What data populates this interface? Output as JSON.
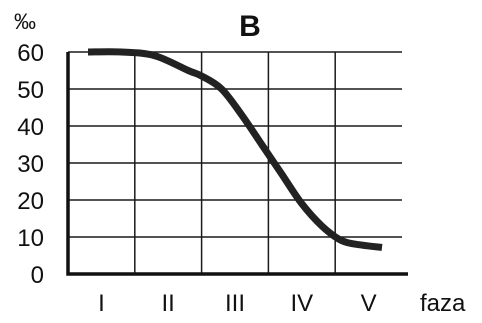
{
  "chart_data": {
    "type": "line",
    "title": "B",
    "ylabel": "‰",
    "xlabel": "faza",
    "categories": [
      "I",
      "II",
      "III",
      "IV",
      "V"
    ],
    "ylim": [
      0,
      60
    ],
    "yticks": [
      0,
      10,
      20,
      30,
      40,
      50,
      60
    ],
    "grid": true,
    "series": [
      {
        "x": [
          0.3,
          0.8,
          1.3,
          1.8,
          2.0,
          2.3,
          2.6,
          2.9,
          3.2,
          3.5,
          3.8,
          4.1,
          4.4,
          4.7
        ],
        "values": [
          60,
          60,
          59,
          55,
          53.5,
          50,
          43,
          35,
          27,
          19,
          13,
          9,
          7.8,
          7.2
        ]
      }
    ],
    "color": "#222222"
  }
}
